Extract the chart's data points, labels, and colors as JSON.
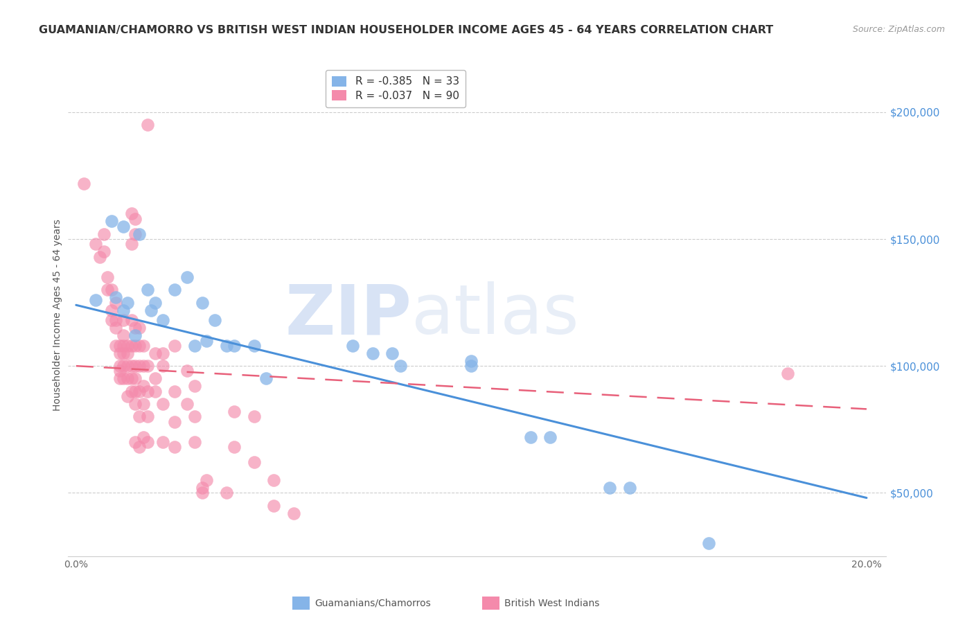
{
  "title": "GUAMANIAN/CHAMORRO VS BRITISH WEST INDIAN HOUSEHOLDER INCOME AGES 45 - 64 YEARS CORRELATION CHART",
  "source": "Source: ZipAtlas.com",
  "ylabel": "Householder Income Ages 45 - 64 years",
  "ytick_values": [
    50000,
    100000,
    150000,
    200000
  ],
  "ytick_labels": [
    "$50,000",
    "$100,000",
    "$150,000",
    "$200,000"
  ],
  "ylim": [
    25000,
    215000
  ],
  "xlim": [
    -0.002,
    0.205
  ],
  "watermark_zip": "ZIP",
  "watermark_atlas": "atlas",
  "blue_scatter": [
    [
      0.005,
      126000
    ],
    [
      0.009,
      157000
    ],
    [
      0.012,
      155000
    ],
    [
      0.01,
      127000
    ],
    [
      0.012,
      122000
    ],
    [
      0.013,
      125000
    ],
    [
      0.015,
      112000
    ],
    [
      0.016,
      152000
    ],
    [
      0.018,
      130000
    ],
    [
      0.019,
      122000
    ],
    [
      0.02,
      125000
    ],
    [
      0.022,
      118000
    ],
    [
      0.025,
      130000
    ],
    [
      0.028,
      135000
    ],
    [
      0.03,
      108000
    ],
    [
      0.032,
      125000
    ],
    [
      0.033,
      110000
    ],
    [
      0.035,
      118000
    ],
    [
      0.038,
      108000
    ],
    [
      0.04,
      108000
    ],
    [
      0.045,
      108000
    ],
    [
      0.048,
      95000
    ],
    [
      0.07,
      108000
    ],
    [
      0.075,
      105000
    ],
    [
      0.08,
      105000
    ],
    [
      0.082,
      100000
    ],
    [
      0.1,
      102000
    ],
    [
      0.1,
      100000
    ],
    [
      0.115,
      72000
    ],
    [
      0.12,
      72000
    ],
    [
      0.135,
      52000
    ],
    [
      0.14,
      52000
    ],
    [
      0.16,
      30000
    ]
  ],
  "pink_scatter": [
    [
      0.002,
      172000
    ],
    [
      0.005,
      148000
    ],
    [
      0.006,
      143000
    ],
    [
      0.007,
      152000
    ],
    [
      0.007,
      145000
    ],
    [
      0.008,
      135000
    ],
    [
      0.008,
      130000
    ],
    [
      0.009,
      130000
    ],
    [
      0.009,
      122000
    ],
    [
      0.009,
      118000
    ],
    [
      0.01,
      125000
    ],
    [
      0.01,
      118000
    ],
    [
      0.01,
      115000
    ],
    [
      0.01,
      108000
    ],
    [
      0.011,
      108000
    ],
    [
      0.011,
      105000
    ],
    [
      0.011,
      100000
    ],
    [
      0.011,
      98000
    ],
    [
      0.011,
      95000
    ],
    [
      0.012,
      118000
    ],
    [
      0.012,
      112000
    ],
    [
      0.012,
      108000
    ],
    [
      0.012,
      105000
    ],
    [
      0.012,
      100000
    ],
    [
      0.012,
      95000
    ],
    [
      0.013,
      108000
    ],
    [
      0.013,
      105000
    ],
    [
      0.013,
      100000
    ],
    [
      0.013,
      95000
    ],
    [
      0.013,
      88000
    ],
    [
      0.014,
      160000
    ],
    [
      0.014,
      148000
    ],
    [
      0.014,
      118000
    ],
    [
      0.014,
      108000
    ],
    [
      0.014,
      100000
    ],
    [
      0.014,
      95000
    ],
    [
      0.014,
      90000
    ],
    [
      0.015,
      158000
    ],
    [
      0.015,
      152000
    ],
    [
      0.015,
      115000
    ],
    [
      0.015,
      108000
    ],
    [
      0.015,
      100000
    ],
    [
      0.015,
      95000
    ],
    [
      0.015,
      90000
    ],
    [
      0.015,
      85000
    ],
    [
      0.015,
      70000
    ],
    [
      0.016,
      115000
    ],
    [
      0.016,
      108000
    ],
    [
      0.016,
      100000
    ],
    [
      0.016,
      90000
    ],
    [
      0.016,
      80000
    ],
    [
      0.016,
      68000
    ],
    [
      0.017,
      108000
    ],
    [
      0.017,
      100000
    ],
    [
      0.017,
      92000
    ],
    [
      0.017,
      85000
    ],
    [
      0.017,
      72000
    ],
    [
      0.018,
      195000
    ],
    [
      0.018,
      100000
    ],
    [
      0.018,
      90000
    ],
    [
      0.018,
      80000
    ],
    [
      0.018,
      70000
    ],
    [
      0.02,
      105000
    ],
    [
      0.02,
      95000
    ],
    [
      0.02,
      90000
    ],
    [
      0.022,
      105000
    ],
    [
      0.022,
      100000
    ],
    [
      0.022,
      85000
    ],
    [
      0.022,
      70000
    ],
    [
      0.025,
      108000
    ],
    [
      0.025,
      90000
    ],
    [
      0.025,
      78000
    ],
    [
      0.025,
      68000
    ],
    [
      0.028,
      98000
    ],
    [
      0.028,
      85000
    ],
    [
      0.03,
      92000
    ],
    [
      0.03,
      80000
    ],
    [
      0.03,
      70000
    ],
    [
      0.032,
      52000
    ],
    [
      0.032,
      50000
    ],
    [
      0.033,
      55000
    ],
    [
      0.038,
      50000
    ],
    [
      0.04,
      82000
    ],
    [
      0.04,
      68000
    ],
    [
      0.045,
      80000
    ],
    [
      0.045,
      62000
    ],
    [
      0.05,
      55000
    ],
    [
      0.05,
      45000
    ],
    [
      0.055,
      42000
    ],
    [
      0.18,
      97000
    ]
  ],
  "blue_line": {
    "x0": 0.0,
    "x1": 0.2,
    "y0": 124000,
    "y1": 48000
  },
  "pink_line": {
    "x0": 0.0,
    "x1": 0.2,
    "y0": 100000,
    "y1": 83000
  },
  "scatter_size": 180,
  "blue_color": "#85b4e8",
  "pink_color": "#f48aab",
  "blue_line_color": "#4a90d9",
  "pink_line_color": "#e8607a",
  "grid_color": "#cccccc",
  "background_color": "#ffffff",
  "title_color": "#333333",
  "right_axis_color": "#4a90d9",
  "title_fontsize": 11.5,
  "label_fontsize": 10,
  "legend_blue_label": "R = -0.385   N = 33",
  "legend_pink_label": "R = -0.037   N = 90",
  "bottom_label_blue": "Guamanians/Chamorros",
  "bottom_label_pink": "British West Indians"
}
